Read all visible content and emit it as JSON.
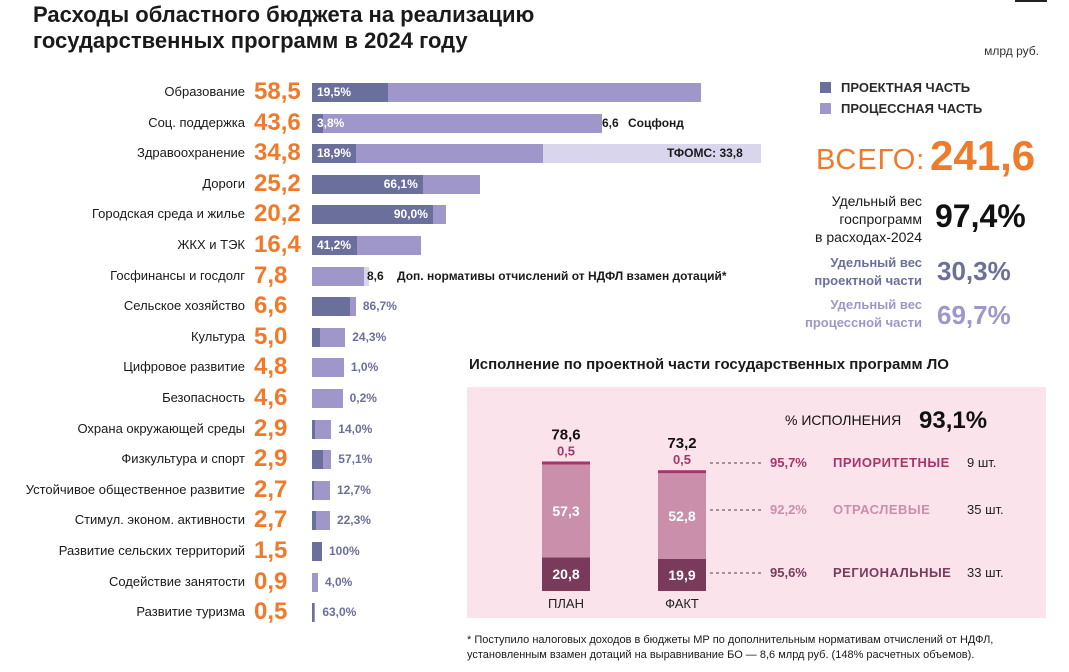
{
  "header": {
    "title_line1": "Расходы областного бюджета на реализацию",
    "title_line2": "государственных программ в 2024 году",
    "unit": "млрд руб."
  },
  "colors": {
    "project": "#6b6f9c",
    "process": "#9f96c9",
    "external": "#d9d5ec",
    "accent": "#f07a2a",
    "priority": "#a4366a",
    "sector": "#c98fab",
    "regional": "#7a3a5c"
  },
  "legend": {
    "project": "ПРОЕКТНАЯ ЧАСТЬ",
    "process": "ПРОЦЕССНАЯ ЧАСТЬ"
  },
  "totals": {
    "label": "ВСЕГО:",
    "value": "241,6",
    "share_label_1": "Удельный вес",
    "share_label_2": "госпрограмм",
    "share_label_3": "в расходах-2024",
    "share_value": "97,4%",
    "project_label_1": "Удельный вес",
    "project_label_2": "проектной части",
    "project_value": "30,3%",
    "process_label_1": "Удельный вес",
    "process_label_2": "процессной части",
    "process_value": "69,7%"
  },
  "chart_data": [
    {
      "type": "bar",
      "orientation": "horizontal",
      "stacked": true,
      "categories": [
        "Образование",
        "Соц. поддержка",
        "Здравоохранение",
        "Дороги",
        "Городская среда и жилье",
        "ЖКХ и ТЭК",
        "Госфинансы и госдолг",
        "Сельское хозяйство",
        "Культура",
        "Цифровое развитие",
        "Безопасность",
        "Охрана окружающей среды",
        "Физкультура и спорт",
        "Устойчивое общественное развитие",
        "Стимул. эконом. активности",
        "Развитие сельских территорий",
        "Содействие занятости",
        "Развитие туризма"
      ],
      "values": [
        58.5,
        43.6,
        34.8,
        25.2,
        20.2,
        16.4,
        7.8,
        6.6,
        5.0,
        4.8,
        4.6,
        2.9,
        2.9,
        2.7,
        2.7,
        1.5,
        0.9,
        0.5
      ],
      "value_labels": [
        "58,5",
        "43,6",
        "34,8",
        "25,2",
        "20,2",
        "16,4",
        "7,8",
        "6,6",
        "5,0",
        "4,8",
        "4,6",
        "2,9",
        "2,9",
        "2,7",
        "2,7",
        "1,5",
        "0,9",
        "0,5"
      ],
      "project_share": [
        19.5,
        3.8,
        18.9,
        66.1,
        90.0,
        41.2,
        0,
        86.7,
        24.3,
        1.0,
        0.2,
        14.0,
        57.1,
        12.7,
        22.3,
        100,
        4.0,
        63.0
      ],
      "project_share_labels": [
        "19,5%",
        "3,8%",
        "18,9%",
        "66,1%",
        "90,0%",
        "41,2%",
        "",
        "86,7%",
        "24,3%",
        "1,0%",
        "0,2%",
        "14,0%",
        "57,1%",
        "12,7%",
        "22,3%",
        "100%",
        "4,0%",
        "63,0%"
      ],
      "extensions": [
        {
          "category": "Соц. поддержка",
          "value": 6.6,
          "value_label": "6,6",
          "label": "Соцфонд"
        },
        {
          "category": "Здравоохранение",
          "value": 33.8,
          "label": "ТФОМС: 33,8"
        },
        {
          "category": "Госфинансы и госдолг",
          "value": 8.6,
          "value_label": "8,6",
          "label": "Доп. нормативы отчислений от НДФЛ взамен дотаций*"
        }
      ]
    },
    {
      "type": "bar",
      "stacked": true,
      "title": "Исполнение по проектной части государственных программ ЛО",
      "categories": [
        "ПЛАН",
        "ФАКТ"
      ],
      "totals": [
        78.6,
        73.2
      ],
      "total_labels": [
        "78,6",
        "73,2"
      ],
      "series": [
        {
          "name": "РЕГИОНАЛЬНЫЕ",
          "values": [
            20.8,
            19.9
          ],
          "labels": [
            "20,8",
            "19,9"
          ],
          "execution": "95,6%",
          "count": "33 шт."
        },
        {
          "name": "ОТРАСЛЕВЫЕ",
          "values": [
            57.3,
            52.8
          ],
          "labels": [
            "57,3",
            "52,8"
          ],
          "execution": "92,2%",
          "count": "35 шт."
        },
        {
          "name": "ПРИОРИТЕТНЫЕ",
          "values": [
            0.5,
            0.5
          ],
          "labels": [
            "0,5",
            "0,5"
          ],
          "execution": "95,7%",
          "count": "9 шт."
        }
      ],
      "execution_label": "% ИСПОЛНЕНИЯ",
      "execution_total": "93,1%"
    }
  ],
  "footnote": {
    "line1": "* Поступило налоговых доходов в бюджеты МР по дополнительным нормативам отчислений от НДФЛ,",
    "line2": "установленным взамен дотаций на выравнивание БО — 8,6 млрд руб. (148% расчетных объемов)."
  }
}
